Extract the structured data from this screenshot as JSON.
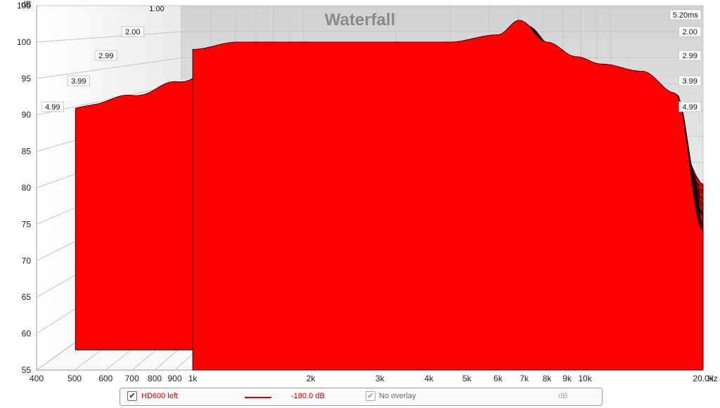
{
  "chart_data": {
    "type": "area",
    "title": "Waterfall",
    "ylabel": "dB",
    "xlabel": "Hz",
    "yticks": [
      "105",
      "100",
      "95",
      "90",
      "85",
      "80",
      "75",
      "70",
      "65",
      "60",
      "55"
    ],
    "xticks": [
      "400",
      "500",
      "600",
      "700",
      "800",
      "900",
      "1k",
      "2k",
      "3k",
      "4k",
      "5k",
      "6k",
      "7k",
      "8k",
      "9k",
      "10k",
      "20.0k"
    ],
    "xtick_values": [
      400,
      500,
      600,
      700,
      800,
      900,
      1000,
      2000,
      3000,
      4000,
      5000,
      6000,
      7000,
      8000,
      9000,
      10000,
      20000
    ],
    "xlim": [
      400,
      20000
    ],
    "x_scale": "log",
    "ylim": [
      55,
      105
    ],
    "time_labels_left": [
      "2.00",
      "2.99",
      "3.99",
      "4.99"
    ],
    "time_labels_right": [
      "5.20ms",
      "2.00",
      "2.99",
      "3.99",
      "4.99"
    ],
    "top_clipped_label": "1.00",
    "series_color": "#ff0000",
    "outline_color": "#000000",
    "series": [
      {
        "name": "HD600 left",
        "time_ms": 0.0,
        "x": [
          400,
          600,
          800,
          1000,
          1300,
          2000,
          3000,
          4500,
          6000,
          6800,
          8000,
          9500,
          11000,
          14000,
          17000,
          20000
        ],
        "y": [
          98,
          98,
          98,
          99,
          100,
          100,
          100,
          100,
          101,
          103,
          100,
          98,
          97,
          96,
          93,
          74
        ]
      },
      {
        "name": "HD600 left",
        "time_ms": 1.0,
        "x": [
          400,
          600,
          800,
          1000,
          1300,
          2000,
          3000,
          4500,
          6000,
          6800,
          8000,
          9500,
          11000,
          14000,
          17000,
          20000
        ],
        "y": [
          90,
          92,
          94,
          96,
          97,
          96,
          96,
          98,
          99,
          102,
          99,
          96,
          95,
          95,
          92,
          74
        ]
      },
      {
        "name": "HD600 left",
        "time_ms": 2.0,
        "x": [
          400,
          600,
          800,
          1000,
          1300,
          2000,
          3000,
          4500,
          6000,
          6800,
          8000,
          9500,
          11000,
          14000,
          17000,
          20000
        ],
        "y": [
          80,
          84,
          86,
          88,
          88,
          86,
          84,
          90,
          94,
          98,
          93,
          92,
          91,
          92,
          88,
          74
        ]
      },
      {
        "name": "HD600 left",
        "time_ms": 3.0,
        "x": [
          400,
          600,
          800,
          1000,
          1300,
          2000,
          3000,
          4500,
          6000,
          6800,
          8000,
          9500,
          11000,
          14000,
          17000,
          20000
        ],
        "y": [
          75,
          79,
          80,
          80,
          79,
          77,
          76,
          82,
          88,
          92,
          84,
          86,
          84,
          88,
          84,
          73
        ]
      },
      {
        "name": "HD600 left",
        "time_ms": 4.0,
        "x": [
          400,
          600,
          800,
          1000,
          1300,
          2000,
          3000,
          4500,
          6000,
          6800,
          8000,
          9500,
          11000,
          14000,
          17000,
          20000
        ],
        "y": [
          73,
          76,
          77,
          76,
          75,
          73,
          72,
          76,
          82,
          86,
          78,
          80,
          78,
          84,
          80,
          72
        ]
      },
      {
        "name": "HD600 left",
        "time_ms": 5.2,
        "x": [
          400,
          600,
          800,
          1000,
          1300,
          2000,
          3000,
          4500,
          6000,
          6800,
          8000,
          9500,
          11000,
          14000,
          17000,
          20000
        ],
        "y": [
          72,
          74,
          74,
          73,
          72,
          71,
          71,
          72,
          76,
          80,
          73,
          74,
          74,
          78,
          76,
          71
        ]
      }
    ]
  },
  "legend": {
    "trace_label": "HD600 left",
    "level_label": "-180.0 dB",
    "overlay_label": "No overlay",
    "overlay_unit": "dB",
    "trace_checked": "✔",
    "overlay_checked": "✔"
  }
}
